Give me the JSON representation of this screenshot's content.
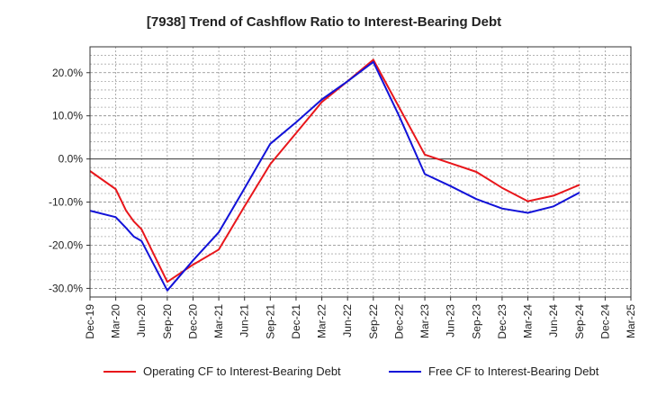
{
  "chart_data": {
    "type": "line",
    "title": "[7938]  Trend of Cashflow Ratio to Interest-Bearing Debt",
    "xlabel": "",
    "ylabel": "",
    "ylim": [
      -32,
      26
    ],
    "yticks": [
      20,
      10,
      0,
      -10,
      -20,
      -30
    ],
    "ytick_labels": [
      "20.0%",
      "10.0%",
      "0.0%",
      "-10.0%",
      "-20.0%",
      "-30.0%"
    ],
    "xtick_labels": [
      "Dec-19",
      "Mar-20",
      "Jun-20",
      "Sep-20",
      "Dec-20",
      "Mar-21",
      "Jun-21",
      "Sep-21",
      "Dec-21",
      "Mar-22",
      "Jun-22",
      "Sep-22",
      "Dec-22",
      "Mar-23",
      "Jun-23",
      "Sep-23",
      "Dec-23",
      "Mar-24",
      "Jun-24",
      "Sep-24",
      "Dec-24",
      "Mar-25"
    ],
    "grid": true,
    "legend_position": "bottom",
    "series": [
      {
        "name": "Operating CF to Interest-Bearing Debt",
        "color": "#e8161b",
        "points": [
          [
            0,
            -2.8
          ],
          [
            1,
            -7
          ],
          [
            1.4,
            -12
          ],
          [
            1.7,
            -14.5
          ],
          [
            2,
            -16.3
          ],
          [
            3,
            -28.5
          ],
          [
            4,
            -24.5
          ],
          [
            5,
            -21
          ],
          [
            6,
            -11
          ],
          [
            7,
            -1.2
          ],
          [
            8,
            6
          ],
          [
            9,
            13.2
          ],
          [
            10,
            18
          ],
          [
            11,
            23
          ],
          [
            12,
            12
          ],
          [
            13,
            1
          ],
          [
            14,
            -1
          ],
          [
            15,
            -3
          ],
          [
            16,
            -6.7
          ],
          [
            17,
            -9.8
          ],
          [
            18,
            -8.5
          ],
          [
            19,
            -6
          ]
        ]
      },
      {
        "name": "Free CF to Interest-Bearing Debt",
        "color": "#1212d8",
        "points": [
          [
            0,
            -12
          ],
          [
            1,
            -13.5
          ],
          [
            1.4,
            -16
          ],
          [
            1.7,
            -18
          ],
          [
            2,
            -19
          ],
          [
            3,
            -30.5
          ],
          [
            4,
            -23.5
          ],
          [
            5,
            -17
          ],
          [
            6,
            -6.8
          ],
          [
            7,
            3.5
          ],
          [
            8,
            8.5
          ],
          [
            9,
            13.8
          ],
          [
            10,
            18
          ],
          [
            11,
            22.5
          ],
          [
            12,
            10
          ],
          [
            13,
            -3.5
          ],
          [
            14,
            -6.3
          ],
          [
            15,
            -9.3
          ],
          [
            16,
            -11.5
          ],
          [
            17,
            -12.5
          ],
          [
            18,
            -11
          ],
          [
            19,
            -7.8
          ]
        ]
      }
    ]
  }
}
